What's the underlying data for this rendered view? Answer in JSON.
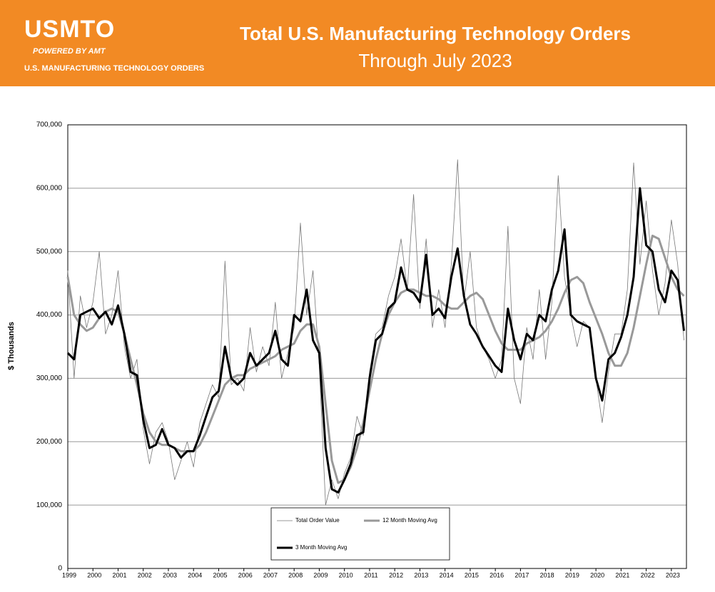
{
  "header": {
    "logo": "USMTO",
    "powered_by": "POWERED BY AMT",
    "tagline": "U.S. MANUFACTURING TECHNOLOGY ORDERS"
  },
  "chart_data": {
    "type": "line",
    "title": "Total U.S. Manufacturing Technology Orders",
    "subtitle": "Through July 2023",
    "y_label": "$ Thousands",
    "x": [
      1999,
      1999.25,
      1999.5,
      1999.75,
      2000,
      2000.25,
      2000.5,
      2000.75,
      2001,
      2001.25,
      2001.5,
      2001.75,
      2002,
      2002.25,
      2002.5,
      2002.75,
      2003,
      2003.25,
      2003.5,
      2003.75,
      2004,
      2004.25,
      2004.5,
      2004.75,
      2005,
      2005.25,
      2005.5,
      2005.75,
      2006,
      2006.25,
      2006.5,
      2006.75,
      2007,
      2007.25,
      2007.5,
      2007.75,
      2008,
      2008.25,
      2008.5,
      2008.75,
      2009,
      2009.25,
      2009.5,
      2009.75,
      2010,
      2010.25,
      2010.5,
      2010.75,
      2011,
      2011.25,
      2011.5,
      2011.75,
      2012,
      2012.25,
      2012.5,
      2012.75,
      2013,
      2013.25,
      2013.5,
      2013.75,
      2014,
      2014.25,
      2014.5,
      2014.75,
      2015,
      2015.25,
      2015.5,
      2015.75,
      2016,
      2016.25,
      2016.5,
      2016.75,
      2017,
      2017.25,
      2017.5,
      2017.75,
      2018,
      2018.25,
      2018.5,
      2018.75,
      2019,
      2019.25,
      2019.5,
      2019.75,
      2020,
      2020.25,
      2020.5,
      2020.75,
      2021,
      2021.25,
      2021.5,
      2021.75,
      2022,
      2022.25,
      2022.5,
      2022.75,
      2023,
      2023.25,
      2023.5
    ],
    "series": [
      {
        "name": "Total Order Value",
        "color": "#777777",
        "values": [
          470000,
          300000,
          430000,
          380000,
          420000,
          500000,
          370000,
          400000,
          470000,
          350000,
          300000,
          330000,
          220000,
          165000,
          215000,
          230000,
          200000,
          140000,
          170000,
          200000,
          160000,
          230000,
          260000,
          290000,
          270000,
          485000,
          290000,
          300000,
          280000,
          380000,
          310000,
          350000,
          320000,
          420000,
          300000,
          340000,
          380000,
          545000,
          400000,
          470000,
          320000,
          100000,
          140000,
          110000,
          150000,
          175000,
          240000,
          210000,
          310000,
          370000,
          380000,
          430000,
          460000,
          520000,
          440000,
          590000,
          410000,
          520000,
          380000,
          440000,
          380000,
          480000,
          645000,
          420000,
          500000,
          380000,
          350000,
          330000,
          300000,
          330000,
          540000,
          300000,
          260000,
          380000,
          330000,
          440000,
          330000,
          420000,
          620000,
          460000,
          400000,
          350000,
          390000,
          380000,
          300000,
          230000,
          310000,
          370000,
          370000,
          440000,
          640000,
          480000,
          580000,
          470000,
          400000,
          450000,
          550000,
          480000,
          360000
        ]
      },
      {
        "name": "12 Month Moving Avg",
        "color": "#999999",
        "values": [
          460000,
          400000,
          385000,
          375000,
          380000,
          395000,
          405000,
          410000,
          405000,
          370000,
          330000,
          290000,
          245000,
          215000,
          200000,
          195000,
          195000,
          190000,
          185000,
          185000,
          185000,
          195000,
          215000,
          240000,
          265000,
          290000,
          300000,
          305000,
          305000,
          315000,
          320000,
          325000,
          330000,
          335000,
          345000,
          350000,
          355000,
          375000,
          385000,
          385000,
          350000,
          260000,
          170000,
          135000,
          140000,
          160000,
          190000,
          230000,
          280000,
          330000,
          370000,
          400000,
          420000,
          435000,
          440000,
          440000,
          435000,
          430000,
          430000,
          425000,
          415000,
          410000,
          410000,
          420000,
          430000,
          435000,
          425000,
          400000,
          375000,
          355000,
          345000,
          345000,
          345000,
          355000,
          360000,
          365000,
          375000,
          390000,
          410000,
          435000,
          455000,
          460000,
          450000,
          420000,
          395000,
          370000,
          340000,
          320000,
          320000,
          340000,
          380000,
          430000,
          480000,
          525000,
          520000,
          490000,
          460000,
          440000,
          430000
        ]
      },
      {
        "name": "3 Month Moving Avg",
        "color": "#000000",
        "values": [
          340000,
          330000,
          400000,
          405000,
          410000,
          395000,
          405000,
          385000,
          415000,
          370000,
          310000,
          305000,
          235000,
          190000,
          195000,
          220000,
          195000,
          190000,
          175000,
          185000,
          185000,
          210000,
          240000,
          270000,
          280000,
          350000,
          300000,
          290000,
          300000,
          340000,
          320000,
          330000,
          340000,
          375000,
          330000,
          320000,
          400000,
          390000,
          440000,
          360000,
          340000,
          190000,
          125000,
          120000,
          140000,
          165000,
          210000,
          215000,
          300000,
          360000,
          370000,
          410000,
          420000,
          475000,
          440000,
          435000,
          420000,
          495000,
          400000,
          410000,
          395000,
          460000,
          505000,
          430000,
          385000,
          370000,
          350000,
          335000,
          320000,
          310000,
          410000,
          360000,
          330000,
          370000,
          360000,
          400000,
          390000,
          440000,
          470000,
          535000,
          400000,
          390000,
          385000,
          380000,
          300000,
          265000,
          330000,
          340000,
          365000,
          400000,
          460000,
          600000,
          510000,
          500000,
          440000,
          420000,
          470000,
          455000,
          375000
        ]
      }
    ],
    "xlim": [
      1999,
      2023.6
    ],
    "xticks": [
      1999,
      2000,
      2001,
      2002,
      2003,
      2004,
      2005,
      2006,
      2007,
      2008,
      2009,
      2010,
      2011,
      2012,
      2013,
      2014,
      2015,
      2016,
      2017,
      2018,
      2019,
      2020,
      2021,
      2022,
      2023
    ],
    "ylim": [
      0,
      700000
    ],
    "yticks": [
      0,
      {
        "value": 100000,
        "label": "100,000"
      },
      {
        "value": 200000,
        "label": "200,000"
      },
      {
        "value": 300000,
        "label": "300,000"
      },
      {
        "value": 400000,
        "label": "400,000"
      },
      {
        "value": 500000,
        "label": "500,000"
      },
      {
        "value": 600000,
        "label": "600,000"
      },
      {
        "value": 700000,
        "label": "700,000"
      }
    ],
    "grid": true
  }
}
